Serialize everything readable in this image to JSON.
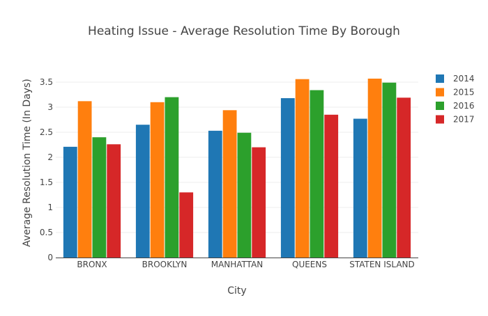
{
  "chart_data": {
    "type": "bar",
    "title": "Heating Issue - Average Resolution Time By Borough",
    "xlabel": "City",
    "ylabel": "Average Resolution Time (In Days)",
    "categories": [
      "BRONX",
      "BROOKLYN",
      "MANHATTAN",
      "QUEENS",
      "STATEN ISLAND"
    ],
    "ylim": [
      0,
      3.75
    ],
    "yticks": [
      0,
      0.5,
      1,
      1.5,
      2,
      2.5,
      3,
      3.5
    ],
    "ytick_labels": [
      "0",
      "0.5",
      "1",
      "1.5",
      "2",
      "2.5",
      "3",
      "3.5"
    ],
    "grid": true,
    "legend_position": "top-right",
    "series": [
      {
        "name": "2014",
        "color": "#1f77b4",
        "values": [
          2.21,
          2.65,
          2.53,
          3.18,
          2.77
        ]
      },
      {
        "name": "2015",
        "color": "#ff7f0e",
        "values": [
          3.12,
          3.1,
          2.94,
          3.56,
          3.57
        ]
      },
      {
        "name": "2016",
        "color": "#2ca02c",
        "values": [
          2.4,
          3.2,
          2.49,
          3.34,
          3.49
        ]
      },
      {
        "name": "2017",
        "color": "#d62728",
        "values": [
          2.26,
          1.3,
          2.2,
          2.85,
          3.19
        ]
      }
    ]
  }
}
